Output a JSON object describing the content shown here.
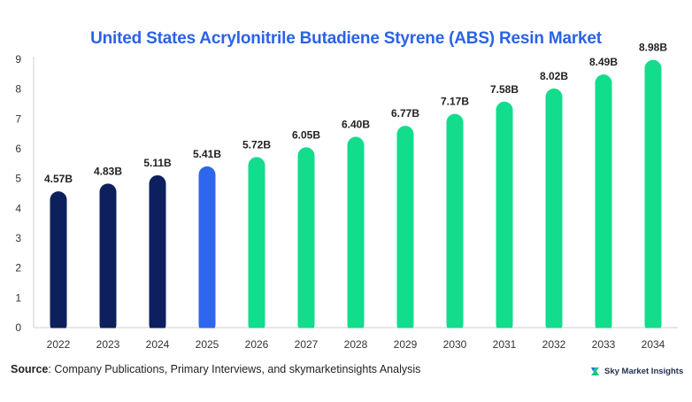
{
  "chart_data": {
    "type": "bar",
    "title": "United States Acrylonitrile Butadiene Styrene (ABS) Resin Market",
    "categories": [
      "2022",
      "2023",
      "2024",
      "2025",
      "2026",
      "2027",
      "2028",
      "2029",
      "2030",
      "2031",
      "2032",
      "2033",
      "2034"
    ],
    "values": [
      4.57,
      4.83,
      5.11,
      5.41,
      5.72,
      6.05,
      6.4,
      6.77,
      7.17,
      7.58,
      8.02,
      8.49,
      8.98
    ],
    "data_labels": [
      "4.57B",
      "4.83B",
      "5.11B",
      "5.41B",
      "5.72B",
      "6.05B",
      "6.40B",
      "6.77B",
      "7.17B",
      "7.58B",
      "8.02B",
      "8.49B",
      "8.98B"
    ],
    "bar_colors": [
      "#0d1f5c",
      "#0d1f5c",
      "#0d1f5c",
      "#2f66f0",
      "#12dd8c",
      "#12dd8c",
      "#12dd8c",
      "#12dd8c",
      "#12dd8c",
      "#12dd8c",
      "#12dd8c",
      "#12dd8c",
      "#12dd8c"
    ],
    "yticks": [
      0,
      1,
      2,
      3,
      4,
      5,
      6,
      7,
      8,
      9
    ],
    "ylim": [
      0,
      9
    ],
    "xlabel": "",
    "ylabel": "",
    "grid": false
  },
  "footer": {
    "source_label": "Source",
    "source_text": ": Company Publications, Primary Interviews, and skymarketinsights Analysis",
    "brand_name": "Sky Market Insights"
  }
}
